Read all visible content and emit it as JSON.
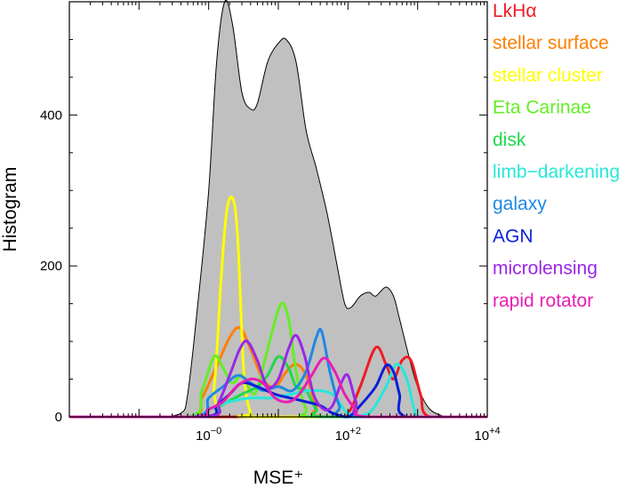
{
  "chart_data": {
    "type": "area",
    "title": "",
    "xlabel": "MSE⁺",
    "ylabel": "Histogram",
    "xscale": "log",
    "xlim": [
      0.01,
      10000
    ],
    "ylim": [
      0,
      550
    ],
    "x_ticks": [
      {
        "value": 1,
        "base": "10",
        "exp": "−0"
      },
      {
        "value": 100,
        "base": "10",
        "exp": "+2"
      },
      {
        "value": 10000,
        "base": "10",
        "exp": "+4"
      }
    ],
    "y_ticks": [
      {
        "value": 0,
        "label": "0"
      },
      {
        "value": 200,
        "label": "200"
      },
      {
        "value": 400,
        "label": "400"
      }
    ],
    "grid": false,
    "legend_position": "right-outside",
    "total": {
      "color": "#c0c0c0",
      "points": [
        [
          0.2,
          0
        ],
        [
          0.4,
          5
        ],
        [
          0.5,
          30
        ],
        [
          0.7,
          150
        ],
        [
          1,
          300
        ],
        [
          1.3,
          470
        ],
        [
          1.7,
          550
        ],
        [
          2.2,
          520
        ],
        [
          3,
          430
        ],
        [
          4,
          408
        ],
        [
          5,
          415
        ],
        [
          7,
          470
        ],
        [
          10,
          495
        ],
        [
          13,
          500
        ],
        [
          18,
          470
        ],
        [
          25,
          380
        ],
        [
          35,
          330
        ],
        [
          50,
          270
        ],
        [
          70,
          200
        ],
        [
          90,
          150
        ],
        [
          110,
          145
        ],
        [
          150,
          160
        ],
        [
          200,
          165
        ],
        [
          250,
          160
        ],
        [
          350,
          172
        ],
        [
          450,
          160
        ],
        [
          550,
          130
        ],
        [
          750,
          80
        ],
        [
          1000,
          40
        ],
        [
          1500,
          10
        ],
        [
          2500,
          0
        ]
      ]
    },
    "series": [
      {
        "name": "LkHα",
        "color": "#ee1c25",
        "points": [
          [
            0.01,
            0
          ],
          [
            60,
            0
          ],
          [
            100,
            5
          ],
          [
            150,
            40
          ],
          [
            250,
            92
          ],
          [
            350,
            70
          ],
          [
            450,
            50
          ],
          [
            600,
            75
          ],
          [
            800,
            75
          ],
          [
            1100,
            30
          ],
          [
            1500,
            0
          ],
          [
            10000,
            0
          ]
        ]
      },
      {
        "name": "stellar surface",
        "color": "#ff7f00",
        "points": [
          [
            0.01,
            0
          ],
          [
            0.5,
            0
          ],
          [
            0.8,
            25
          ],
          [
            1.2,
            60
          ],
          [
            2,
            105
          ],
          [
            2.8,
            118
          ],
          [
            4,
            90
          ],
          [
            6,
            50
          ],
          [
            9,
            40
          ],
          [
            13,
            60
          ],
          [
            18,
            70
          ],
          [
            25,
            55
          ],
          [
            35,
            15
          ],
          [
            50,
            0
          ],
          [
            10000,
            0
          ]
        ]
      },
      {
        "name": "stellar cluster",
        "color": "#ffff00",
        "points": [
          [
            0.01,
            0
          ],
          [
            0.9,
            0
          ],
          [
            1.2,
            40
          ],
          [
            1.5,
            180
          ],
          [
            1.8,
            270
          ],
          [
            2.2,
            290
          ],
          [
            2.6,
            240
          ],
          [
            3.2,
            60
          ],
          [
            4,
            5
          ],
          [
            5,
            0
          ],
          [
            10000,
            0
          ]
        ]
      },
      {
        "name": "Eta Carinae",
        "color": "#64ee24",
        "points": [
          [
            0.01,
            0
          ],
          [
            0.5,
            0
          ],
          [
            0.8,
            35
          ],
          [
            1.2,
            80
          ],
          [
            1.6,
            65
          ],
          [
            2.2,
            45
          ],
          [
            3,
            55
          ],
          [
            4.5,
            30
          ],
          [
            6,
            65
          ],
          [
            8,
            110
          ],
          [
            11,
            150
          ],
          [
            14,
            130
          ],
          [
            18,
            60
          ],
          [
            25,
            10
          ],
          [
            35,
            0
          ],
          [
            10000,
            0
          ]
        ]
      },
      {
        "name": "disk",
        "color": "#1fd84a",
        "points": [
          [
            0.01,
            0
          ],
          [
            0.8,
            0
          ],
          [
            1.5,
            15
          ],
          [
            3,
            30
          ],
          [
            5,
            40
          ],
          [
            7,
            55
          ],
          [
            10,
            80
          ],
          [
            14,
            65
          ],
          [
            18,
            40
          ],
          [
            25,
            35
          ],
          [
            35,
            10
          ],
          [
            50,
            0
          ],
          [
            10000,
            0
          ]
        ]
      },
      {
        "name": "limb−darkening",
        "color": "#26e8d8",
        "points": [
          [
            0.01,
            0
          ],
          [
            0.5,
            0
          ],
          [
            1,
            10
          ],
          [
            2,
            20
          ],
          [
            4,
            25
          ],
          [
            8,
            25
          ],
          [
            15,
            30
          ],
          [
            30,
            35
          ],
          [
            60,
            30
          ],
          [
            100,
            5
          ],
          [
            200,
            5
          ],
          [
            350,
            40
          ],
          [
            500,
            70
          ],
          [
            700,
            50
          ],
          [
            900,
            10
          ],
          [
            1200,
            0
          ],
          [
            10000,
            0
          ]
        ]
      },
      {
        "name": "galaxy",
        "color": "#1e88e5",
        "points": [
          [
            0.01,
            0
          ],
          [
            0.6,
            0
          ],
          [
            1,
            25
          ],
          [
            1.6,
            40
          ],
          [
            2.6,
            55
          ],
          [
            4,
            45
          ],
          [
            6,
            35
          ],
          [
            10,
            40
          ],
          [
            16,
            35
          ],
          [
            25,
            60
          ],
          [
            35,
            105
          ],
          [
            42,
            113
          ],
          [
            55,
            60
          ],
          [
            75,
            15
          ],
          [
            100,
            0
          ],
          [
            10000,
            0
          ]
        ]
      },
      {
        "name": "AGN",
        "color": "#0a1fd8",
        "points": [
          [
            0.01,
            0
          ],
          [
            0.8,
            0
          ],
          [
            1.3,
            15
          ],
          [
            2,
            30
          ],
          [
            3,
            45
          ],
          [
            5,
            40
          ],
          [
            9,
            30
          ],
          [
            15,
            25
          ],
          [
            25,
            20
          ],
          [
            40,
            15
          ],
          [
            60,
            5
          ],
          [
            100,
            0
          ],
          [
            150,
            15
          ],
          [
            250,
            40
          ],
          [
            350,
            68
          ],
          [
            450,
            60
          ],
          [
            550,
            30
          ],
          [
            700,
            0
          ],
          [
            10000,
            0
          ]
        ]
      },
      {
        "name": "microlensing",
        "color": "#9b26e8",
        "points": [
          [
            0.01,
            0
          ],
          [
            0.9,
            0
          ],
          [
            1.4,
            20
          ],
          [
            2,
            55
          ],
          [
            2.8,
            90
          ],
          [
            3.6,
            100
          ],
          [
            5,
            75
          ],
          [
            7,
            40
          ],
          [
            10,
            50
          ],
          [
            14,
            90
          ],
          [
            18,
            108
          ],
          [
            24,
            80
          ],
          [
            32,
            30
          ],
          [
            45,
            10
          ],
          [
            60,
            15
          ],
          [
            80,
            45
          ],
          [
            100,
            55
          ],
          [
            130,
            20
          ],
          [
            180,
            0
          ],
          [
            10000,
            0
          ]
        ]
      },
      {
        "name": "rapid rotator",
        "color": "#e81eb4",
        "points": [
          [
            0.01,
            0
          ],
          [
            0.6,
            0
          ],
          [
            1,
            10
          ],
          [
            1.6,
            20
          ],
          [
            2.5,
            40
          ],
          [
            4,
            50
          ],
          [
            6,
            45
          ],
          [
            9,
            25
          ],
          [
            14,
            20
          ],
          [
            20,
            30
          ],
          [
            30,
            55
          ],
          [
            45,
            78
          ],
          [
            65,
            60
          ],
          [
            90,
            30
          ],
          [
            130,
            10
          ],
          [
            200,
            0
          ],
          [
            10000,
            0
          ]
        ]
      }
    ]
  }
}
